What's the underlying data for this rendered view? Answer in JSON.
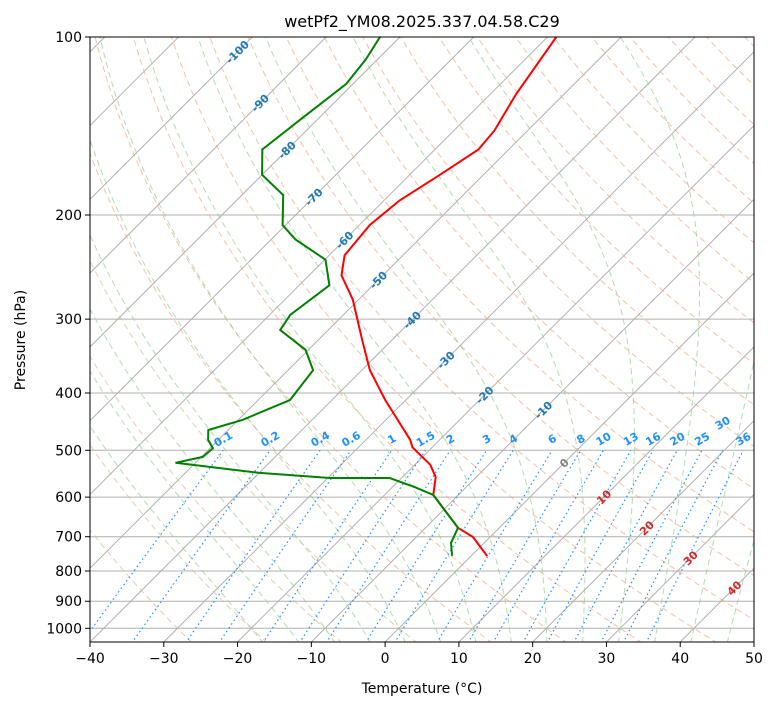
{
  "chart_data": {
    "type": "line",
    "subtype": "skew-t log-p",
    "title": "wetPf2_YM08.2025.337.04.58.C29",
    "xlabel": "Temperature (°C)",
    "ylabel": "Pressure (hPa)",
    "xlim": [
      -40,
      50
    ],
    "ylim": [
      1050,
      100
    ],
    "xticks": [
      "−40",
      "−30",
      "−20",
      "−10",
      "0",
      "10",
      "20",
      "30",
      "40",
      "50"
    ],
    "yticks": [
      "100",
      "200",
      "300",
      "400",
      "500",
      "600",
      "700",
      "800",
      "900",
      "1000"
    ],
    "grid": true,
    "series": [
      {
        "name": "Temperature",
        "color": "#ff0000",
        "pressure": [
          755,
          701,
          676,
          626,
          595,
          555,
          529,
          494,
          480,
          411,
          366,
          325,
          278,
          253,
          234,
          208,
          189,
          171,
          155,
          144,
          125,
          100
        ],
        "temperature": [
          2.2,
          -2.3,
          -5.6,
          -10.3,
          -13.4,
          -15.5,
          -17.9,
          -22.7,
          -24,
          -32.8,
          -38.9,
          -44.1,
          -50.8,
          -55.6,
          -57.9,
          -58.6,
          -57.9,
          -55.9,
          -54.1,
          -54.5,
          -56.5,
          -58.8
        ]
      },
      {
        "name": "Dewpoint",
        "color": "#008000",
        "pressure": [
          754,
          717,
          676,
          626,
          595,
          577,
          557,
          557,
          546,
          525,
          513,
          496,
          480,
          462,
          444,
          411,
          366,
          338,
          313,
          295,
          263,
          238,
          220,
          208,
          185,
          171,
          155,
          138,
          120,
          109,
          100
        ],
        "temperature": [
          -2.6,
          -4.5,
          -5.6,
          -10.3,
          -13.4,
          -17,
          -21.6,
          -29.7,
          -39.9,
          -52.7,
          -49.8,
          -49.6,
          -51.4,
          -52.7,
          -49.4,
          -45.7,
          -46.6,
          -50.4,
          -56.5,
          -57.2,
          -55.9,
          -59.9,
          -66.7,
          -70.4,
          -74.4,
          -80,
          -83.4,
          -82.3,
          -80.9,
          -81.6,
          -82.7
        ]
      }
    ],
    "isotherm_labels": [
      "-100",
      "-90",
      "-80",
      "-70",
      "-60",
      "-50",
      "-40",
      "-30",
      "-20",
      "-10",
      "0",
      "10",
      "20",
      "30",
      "40"
    ],
    "mixing_ratio_labels": [
      "0.1",
      "0.2",
      "0.4",
      "0.6",
      "1",
      "1.5",
      "2",
      "3",
      "4",
      "6",
      "8",
      "10",
      "13",
      "16",
      "20",
      "25",
      "30",
      "36"
    ],
    "colors": {
      "isotherm": "#b0b0b0",
      "dry_adiabat": "#f4a582",
      "moist_adiabat": "#8fce8f",
      "mixing_ratio": "#1e90ff",
      "isotherm_label_cold": "#1f77b4",
      "isotherm_label_warm": "#d62728",
      "isotherm_label_zero": "#808080"
    }
  }
}
